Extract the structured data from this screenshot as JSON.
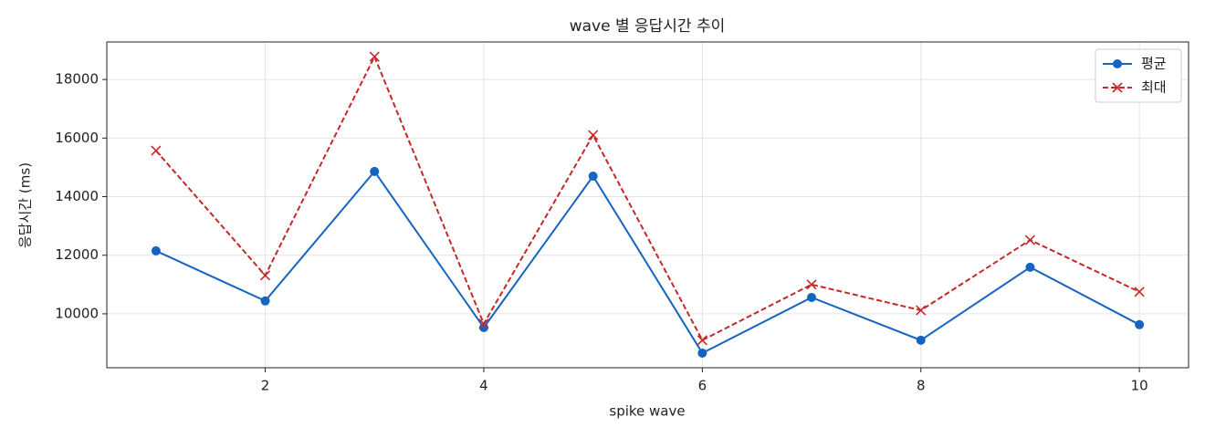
{
  "chart_data": {
    "type": "line",
    "title": "wave 별 응답시간 추이",
    "x_label": "spike wave",
    "y_label": "응답시간 (ms)",
    "x": [
      1,
      2,
      3,
      4,
      5,
      6,
      7,
      8,
      9,
      10
    ],
    "series": [
      {
        "name": "평균",
        "color": "#1565c0",
        "marker": "circle",
        "linestyle": "solid",
        "values": [
          12150,
          10440,
          14860,
          9530,
          14700,
          8660,
          10560,
          9100,
          11590,
          9630
        ]
      },
      {
        "name": "최대",
        "color": "#c62828",
        "marker": "x",
        "linestyle": "dashed",
        "values": [
          15570,
          11310,
          18780,
          9660,
          16100,
          9100,
          11000,
          10120,
          12520,
          10750
        ]
      }
    ],
    "xlim": [
      0.55,
      10.45
    ],
    "xticks": [
      2,
      4,
      6,
      8,
      10
    ],
    "ylim": [
      8160,
      19280
    ],
    "yticks": [
      10000,
      12000,
      14000,
      16000,
      18000
    ],
    "grid": true,
    "legend": "upper-right"
  }
}
